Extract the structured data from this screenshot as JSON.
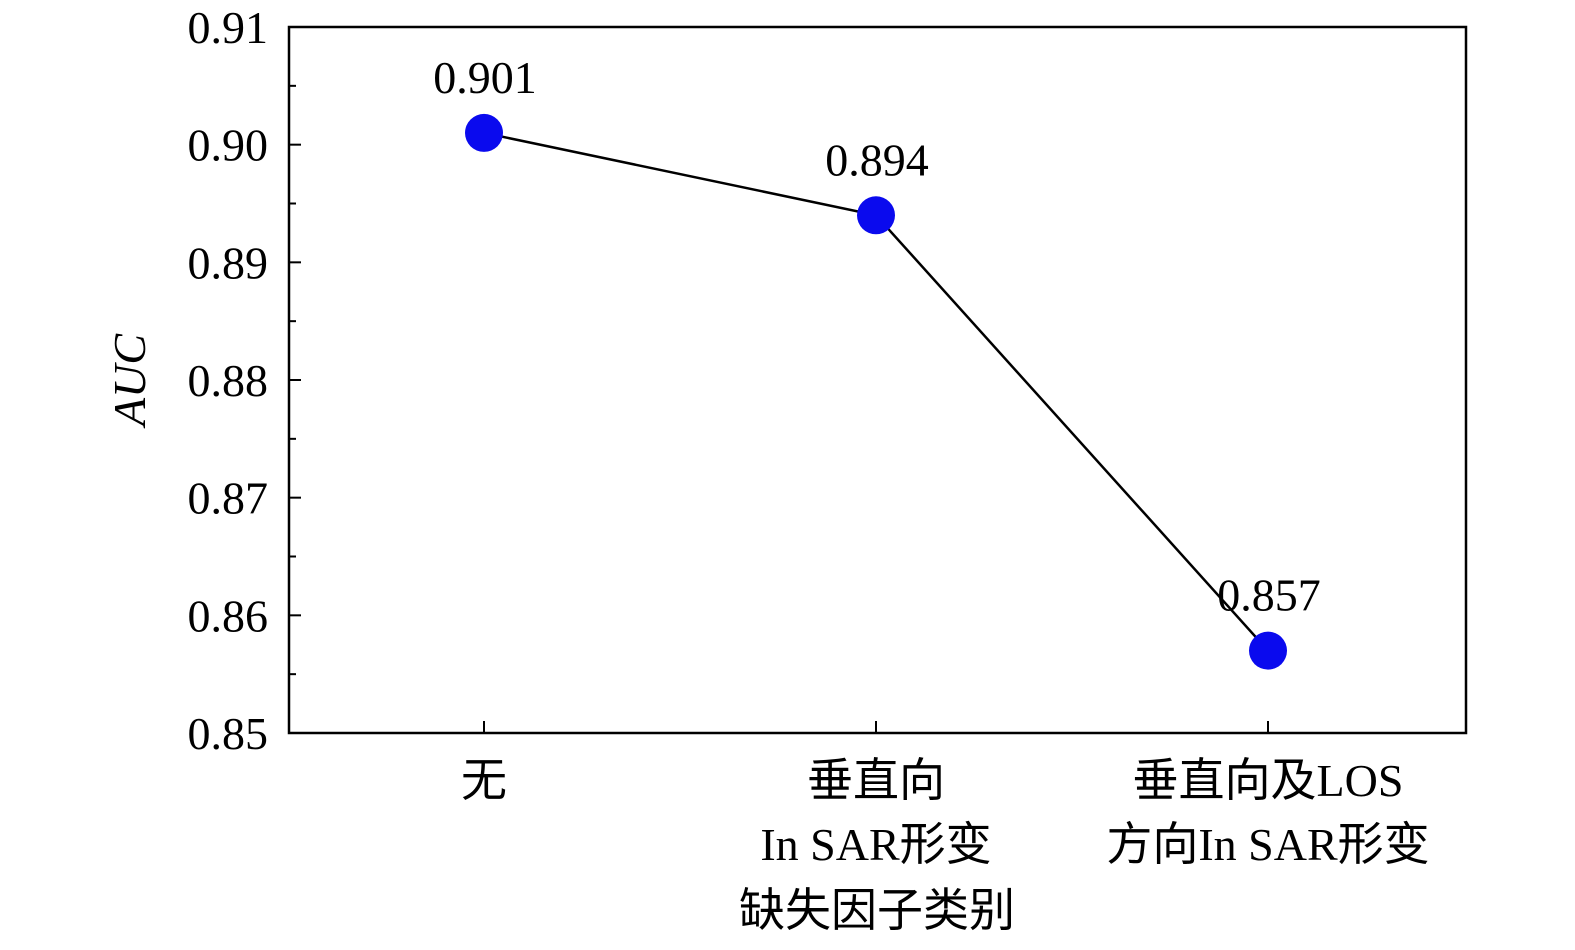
{
  "chart_data": {
    "type": "line",
    "title": "",
    "xlabel": "缺失因子类别",
    "ylabel": "AUC",
    "categories": [
      [
        "无"
      ],
      [
        "垂直向",
        "In SAR形变"
      ],
      [
        "垂直向及LOS",
        "方向In SAR形变"
      ]
    ],
    "series": [
      {
        "values": [
          0.901,
          0.894,
          0.857
        ],
        "color": "#0a0aee",
        "line_color": "#000000"
      }
    ],
    "data_labels": [
      "0.901",
      "0.894",
      "0.857"
    ],
    "ylim": [
      0.85,
      0.91
    ],
    "yticks": [
      0.85,
      0.86,
      0.87,
      0.88,
      0.89,
      0.9,
      0.91
    ],
    "ytick_labels": [
      "0.85",
      "0.86",
      "0.87",
      "0.88",
      "0.89",
      "0.90",
      "0.91"
    ],
    "grid": false,
    "legend": "none"
  }
}
